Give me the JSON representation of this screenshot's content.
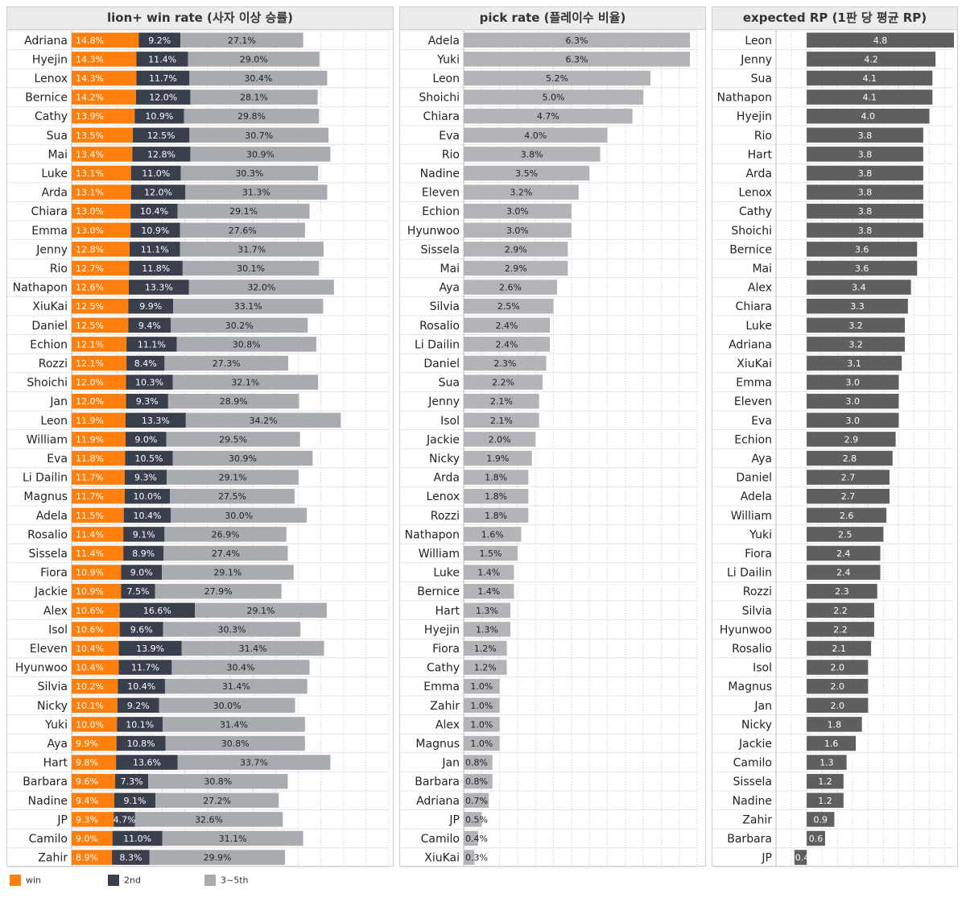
{
  "panels": [
    {
      "title": "lion+ win rate (사자 이상 승률)"
    },
    {
      "title": "pick rate (플레이수 비율)"
    },
    {
      "title": "expected RP (1판 당 평균 RP)"
    }
  ],
  "legend": [
    {
      "label": "win",
      "color": "#ff7f0e"
    },
    {
      "label": "2nd",
      "color": "#3a3f4e"
    },
    {
      "label": "3~5th",
      "color": "#a8abb0"
    }
  ],
  "chart_data": [
    {
      "type": "bar",
      "stacked": true,
      "orientation": "horizontal",
      "title": "lion+ win rate (사자 이상 승률)",
      "xlim": [
        0,
        70
      ],
      "grid": true,
      "legend_position": "bottom-left",
      "categories": [
        "Adriana",
        "Hyejin",
        "Lenox",
        "Bernice",
        "Cathy",
        "Sua",
        "Mai",
        "Luke",
        "Arda",
        "Chiara",
        "Emma",
        "Jenny",
        "Rio",
        "Nathapon",
        "XiuKai",
        "Daniel",
        "Echion",
        "Rozzi",
        "Shoichi",
        "Jan",
        "Leon",
        "William",
        "Eva",
        "Li Dailin",
        "Magnus",
        "Adela",
        "Rosalio",
        "Sissela",
        "Fiora",
        "Jackie",
        "Alex",
        "Isol",
        "Eleven",
        "Hyunwoo",
        "Silvia",
        "Nicky",
        "Yuki",
        "Aya",
        "Hart",
        "Barbara",
        "Nadine",
        "JP",
        "Camilo",
        "Zahir"
      ],
      "series": [
        {
          "name": "win",
          "color": "#ff7f0e",
          "values": [
            14.8,
            14.3,
            14.3,
            14.2,
            13.9,
            13.5,
            13.4,
            13.1,
            13.1,
            13.0,
            13.0,
            12.8,
            12.7,
            12.6,
            12.5,
            12.5,
            12.1,
            12.1,
            12.0,
            12.0,
            11.9,
            11.9,
            11.8,
            11.7,
            11.7,
            11.5,
            11.4,
            11.4,
            10.9,
            10.9,
            10.6,
            10.6,
            10.4,
            10.4,
            10.2,
            10.1,
            10.0,
            9.9,
            9.8,
            9.6,
            9.4,
            9.3,
            9.0,
            8.9
          ],
          "labels": [
            "14.8%",
            "14.3%",
            "14.3%",
            "14.2%",
            "13.9%",
            "13.5%",
            "13.4%",
            "13.1%",
            "13.1%",
            "13.0%",
            "13.0%",
            "12.8%",
            "12.7%",
            "12.6%",
            "12.5%",
            "12.5%",
            "12.1%",
            "12.1%",
            "12.0%",
            "12.0%",
            "11.9%",
            "11.9%",
            "11.8%",
            "11.7%",
            "11.7%",
            "11.5%",
            "11.4%",
            "11.4%",
            "10.9%",
            "10.9%",
            "10.6%",
            "10.6%",
            "10.4%",
            "10.4%",
            "10.2%",
            "10.1%",
            "10.0%",
            "9.9%",
            "9.8%",
            "9.6%",
            "9.4%",
            "9.3%",
            "9.0%",
            "8.9%"
          ]
        },
        {
          "name": "2nd",
          "color": "#3a3f4e",
          "values": [
            9.2,
            11.4,
            11.7,
            12.0,
            10.9,
            12.5,
            12.8,
            11.0,
            12.0,
            10.4,
            10.9,
            11.1,
            11.8,
            13.3,
            9.9,
            9.4,
            11.1,
            8.4,
            10.3,
            9.3,
            13.3,
            9.0,
            10.5,
            9.3,
            10.0,
            10.4,
            9.1,
            8.9,
            9.0,
            7.5,
            16.6,
            9.6,
            13.9,
            11.7,
            10.4,
            9.2,
            10.1,
            10.8,
            13.6,
            7.3,
            9.1,
            4.7,
            11.0,
            8.3
          ],
          "labels": [
            "9.2%",
            "11.4%",
            "11.7%",
            "12.0%",
            "10.9%",
            "12.5%",
            "12.8%",
            "11.0%",
            "12.0%",
            "10.4%",
            "10.9%",
            "11.1%",
            "11.8%",
            "13.3%",
            "9.9%",
            "9.4%",
            "11.1%",
            "8.4%",
            "10.3%",
            "9.3%",
            "13.3%",
            "9.0%",
            "10.5%",
            "9.3%",
            "10.0%",
            "10.4%",
            "9.1%",
            "8.9%",
            "9.0%",
            "7.5%",
            "16.6%",
            "9.6%",
            "13.9%",
            "11.7%",
            "10.4%",
            "9.2%",
            "10.1%",
            "10.8%",
            "13.6%",
            "7.3%",
            "9.1%",
            "4.7%",
            "11.0%",
            "8.3%"
          ]
        },
        {
          "name": "3~5th",
          "color": "#a8abb0",
          "values": [
            27.1,
            29.0,
            30.4,
            28.1,
            29.8,
            30.7,
            30.9,
            30.3,
            31.3,
            29.1,
            27.6,
            31.7,
            30.1,
            32.0,
            33.1,
            30.2,
            30.8,
            27.3,
            32.1,
            28.9,
            34.2,
            29.5,
            30.9,
            29.1,
            27.5,
            30.0,
            26.9,
            27.4,
            29.1,
            27.9,
            29.1,
            30.3,
            31.4,
            30.4,
            31.4,
            30.0,
            31.4,
            30.8,
            33.7,
            30.8,
            27.2,
            32.6,
            31.1,
            29.9
          ],
          "labels": [
            "27.1%",
            "29.0%",
            "30.4%",
            "28.1%",
            "29.8%",
            "30.7%",
            "30.9%",
            "30.3%",
            "31.3%",
            "29.1%",
            "27.6%",
            "31.7%",
            "30.1%",
            "32.0%",
            "33.1%",
            "30.2%",
            "30.8%",
            "27.3%",
            "32.1%",
            "28.9%",
            "34.2%",
            "29.5%",
            "30.9%",
            "29.1%",
            "27.5%",
            "30.0%",
            "26.9%",
            "27.4%",
            "29.1%",
            "27.9%",
            "29.1%",
            "30.3%",
            "31.4%",
            "30.4%",
            "31.4%",
            "30.0%",
            "31.4%",
            "30.8%",
            "33.7%",
            "30.8%",
            "27.2%",
            "32.6%",
            "31.1%",
            "29.9%"
          ]
        }
      ]
    },
    {
      "type": "bar",
      "orientation": "horizontal",
      "title": "pick rate (플레이수 비율)",
      "xlim": [
        0,
        6.5
      ],
      "grid": true,
      "color": "#b2b4b8",
      "categories": [
        "Adela",
        "Yuki",
        "Leon",
        "Shoichi",
        "Chiara",
        "Eva",
        "Rio",
        "Nadine",
        "Eleven",
        "Echion",
        "Hyunwoo",
        "Sissela",
        "Mai",
        "Aya",
        "Silvia",
        "Rosalio",
        "Li Dailin",
        "Daniel",
        "Sua",
        "Jenny",
        "Isol",
        "Jackie",
        "Nicky",
        "Arda",
        "Lenox",
        "Rozzi",
        "Nathapon",
        "William",
        "Luke",
        "Bernice",
        "Hart",
        "Hyejin",
        "Fiora",
        "Cathy",
        "Emma",
        "Zahir",
        "Alex",
        "Magnus",
        "Jan",
        "Barbara",
        "Adriana",
        "JP",
        "Camilo",
        "XiuKai"
      ],
      "values": [
        6.3,
        6.3,
        5.2,
        5.0,
        4.7,
        4.0,
        3.8,
        3.5,
        3.2,
        3.0,
        3.0,
        2.9,
        2.9,
        2.6,
        2.5,
        2.4,
        2.4,
        2.3,
        2.2,
        2.1,
        2.1,
        2.0,
        1.9,
        1.8,
        1.8,
        1.8,
        1.6,
        1.5,
        1.4,
        1.4,
        1.3,
        1.3,
        1.2,
        1.2,
        1.0,
        1.0,
        1.0,
        1.0,
        0.8,
        0.8,
        0.7,
        0.5,
        0.4,
        0.3
      ],
      "labels": [
        "6.3%",
        "6.3%",
        "5.2%",
        "5.0%",
        "4.7%",
        "4.0%",
        "3.8%",
        "3.5%",
        "3.2%",
        "3.0%",
        "3.0%",
        "2.9%",
        "2.9%",
        "2.6%",
        "2.5%",
        "2.4%",
        "2.4%",
        "2.3%",
        "2.2%",
        "2.1%",
        "2.1%",
        "2.0%",
        "1.9%",
        "1.8%",
        "1.8%",
        "1.8%",
        "1.6%",
        "1.5%",
        "1.4%",
        "1.4%",
        "1.3%",
        "1.3%",
        "1.2%",
        "1.2%",
        "1.0%",
        "1.0%",
        "1.0%",
        "1.0%",
        "0.8%",
        "0.8%",
        "0.7%",
        "0.5%",
        "0.4%",
        "0.3%"
      ]
    },
    {
      "type": "bar",
      "orientation": "horizontal",
      "title": "expected RP (1판 당 평균 RP)",
      "xlim": [
        -1,
        4.8
      ],
      "grid": true,
      "color": "#5f5f5f",
      "categories": [
        "Leon",
        "Jenny",
        "Sua",
        "Nathapon",
        "Hyejin",
        "Rio",
        "Hart",
        "Arda",
        "Lenox",
        "Cathy",
        "Shoichi",
        "Bernice",
        "Mai",
        "Alex",
        "Chiara",
        "Luke",
        "Adriana",
        "XiuKai",
        "Emma",
        "Eleven",
        "Eva",
        "Echion",
        "Aya",
        "Daniel",
        "Adela",
        "William",
        "Yuki",
        "Fiora",
        "Li Dailin",
        "Rozzi",
        "Silvia",
        "Hyunwoo",
        "Rosalio",
        "Isol",
        "Magnus",
        "Jan",
        "Nicky",
        "Jackie",
        "Camilo",
        "Sissela",
        "Nadine",
        "Zahir",
        "Barbara",
        "JP"
      ],
      "values": [
        4.8,
        4.2,
        4.1,
        4.1,
        4.0,
        3.8,
        3.8,
        3.8,
        3.8,
        3.8,
        3.8,
        3.6,
        3.6,
        3.4,
        3.3,
        3.2,
        3.2,
        3.1,
        3.0,
        3.0,
        3.0,
        2.9,
        2.8,
        2.7,
        2.7,
        2.6,
        2.5,
        2.4,
        2.4,
        2.3,
        2.2,
        2.2,
        2.1,
        2.0,
        2.0,
        2.0,
        1.8,
        1.6,
        1.3,
        1.2,
        1.2,
        0.9,
        0.6,
        -0.4
      ],
      "labels": [
        "4.8",
        "4.2",
        "4.1",
        "4.1",
        "4.0",
        "3.8",
        "3.8",
        "3.8",
        "3.8",
        "3.8",
        "3.8",
        "3.6",
        "3.6",
        "3.4",
        "3.3",
        "3.2",
        "3.2",
        "3.1",
        "3.0",
        "3.0",
        "3.0",
        "2.9",
        "2.8",
        "2.7",
        "2.7",
        "2.6",
        "2.5",
        "2.4",
        "2.4",
        "2.3",
        "2.2",
        "2.2",
        "2.1",
        "2.0",
        "2.0",
        "2.0",
        "1.8",
        "1.6",
        "1.3",
        "1.2",
        "1.2",
        "0.9",
        "0.6",
        "-0.4"
      ]
    }
  ]
}
